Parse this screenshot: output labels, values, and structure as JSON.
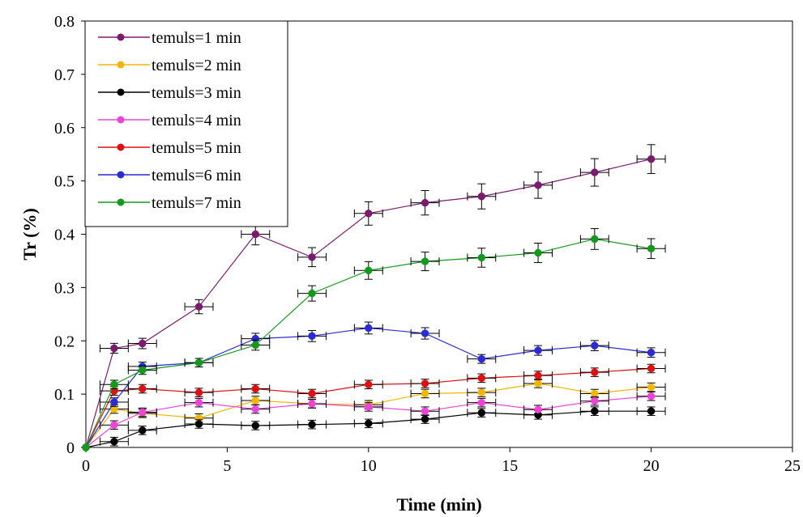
{
  "chart_data": {
    "type": "line",
    "title": "",
    "xlabel": "Time (min)",
    "ylabel": "Tr (%)",
    "xlim": [
      0,
      25
    ],
    "ylim": [
      0,
      0.8
    ],
    "x_ticks": [
      0,
      5,
      10,
      15,
      20,
      25
    ],
    "x_tick_labels": [
      "0",
      "5",
      "10",
      "15",
      "20",
      "25"
    ],
    "y_ticks": [
      0,
      0.1,
      0.2,
      0.3,
      0.4,
      0.5,
      0.6,
      0.7,
      0.8
    ],
    "y_tick_labels": [
      "0",
      "0.1",
      "0.2",
      "0.3",
      "0.4",
      "0.5",
      "0.6",
      "0.7",
      "0.8"
    ],
    "grid": false,
    "legend": "top-left",
    "error_bars": {
      "x": 1.0,
      "y_fraction": 0.05,
      "y_min": 0.008
    },
    "series": [
      {
        "name": "temuls=1 min",
        "color": "#7B1A6E",
        "x": [
          0,
          1,
          2,
          4,
          6,
          8,
          10,
          12,
          14,
          16,
          18,
          20
        ],
        "y": [
          0,
          0.186,
          0.195,
          0.264,
          0.4,
          0.357,
          0.439,
          0.459,
          0.471,
          0.492,
          0.516,
          0.541
        ]
      },
      {
        "name": "temuls=2 min",
        "color": "#F2B600",
        "x": [
          0,
          1,
          2,
          4,
          6,
          8,
          10,
          12,
          14,
          16,
          18,
          20
        ],
        "y": [
          0,
          0.072,
          0.064,
          0.055,
          0.088,
          0.082,
          0.08,
          0.101,
          0.103,
          0.12,
          0.101,
          0.113
        ]
      },
      {
        "name": "temuls=3 min",
        "color": "#000000",
        "x": [
          0,
          1,
          2,
          4,
          6,
          8,
          10,
          12,
          14,
          16,
          18,
          20
        ],
        "y": [
          0,
          0.011,
          0.032,
          0.044,
          0.041,
          0.043,
          0.045,
          0.053,
          0.065,
          0.061,
          0.068,
          0.068
        ]
      },
      {
        "name": "temuls=4 min",
        "color": "#EE42D8",
        "x": [
          0,
          1,
          2,
          4,
          6,
          8,
          10,
          12,
          14,
          16,
          18,
          20
        ],
        "y": [
          0,
          0.042,
          0.066,
          0.084,
          0.072,
          0.082,
          0.076,
          0.068,
          0.084,
          0.071,
          0.087,
          0.096
        ]
      },
      {
        "name": "temuls=5 min",
        "color": "#E01010",
        "x": [
          0,
          1,
          2,
          4,
          6,
          8,
          10,
          12,
          14,
          16,
          18,
          20
        ],
        "y": [
          0,
          0.106,
          0.11,
          0.103,
          0.11,
          0.101,
          0.118,
          0.12,
          0.13,
          0.135,
          0.141,
          0.148
        ]
      },
      {
        "name": "temuls=6 min",
        "color": "#2B2BD4",
        "x": [
          0,
          1,
          2,
          4,
          6,
          8,
          10,
          12,
          14,
          16,
          18,
          20
        ],
        "y": [
          0,
          0.085,
          0.152,
          0.159,
          0.204,
          0.209,
          0.224,
          0.214,
          0.166,
          0.182,
          0.191,
          0.178
        ]
      },
      {
        "name": "temuls=7 min",
        "color": "#139A1B",
        "x": [
          0,
          1,
          2,
          4,
          6,
          8,
          10,
          12,
          14,
          16,
          18,
          20
        ],
        "y": [
          0,
          0.118,
          0.145,
          0.159,
          0.192,
          0.289,
          0.332,
          0.349,
          0.356,
          0.365,
          0.391,
          0.373
        ]
      }
    ]
  }
}
